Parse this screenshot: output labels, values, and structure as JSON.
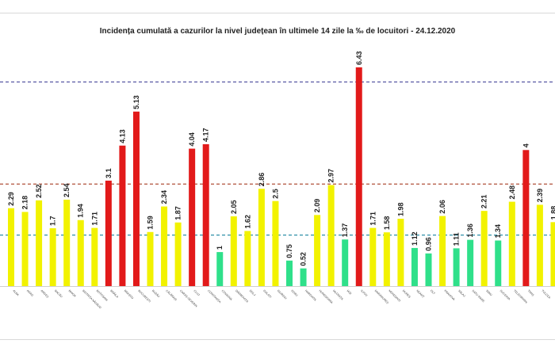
{
  "title": "Incidența cumulată a cazurilor la nivel județean în ultimele 14 zile la ‰ de locuitori - 24.12.2020",
  "colors": {
    "yellow": "#f2f200",
    "red": "#e21a1a",
    "green": "#2fe08a",
    "line_blue": "#4a4a9c",
    "line_red": "#b0503a",
    "line_teal": "#2f8fa8",
    "baseline": "#d0d0d0"
  },
  "chart_data": {
    "type": "bar",
    "title": "Incidența cumulată a cazurilor la nivel județean în ultimele 14 zile la ‰ de locuitori - 24.12.2020",
    "xlabel": "",
    "ylabel": "",
    "ylim": [
      0,
      7
    ],
    "grid": false,
    "reference_lines": [
      {
        "value": 6,
        "color": "line_blue",
        "style": "dashed"
      },
      {
        "value": 3,
        "color": "line_red",
        "style": "dashed"
      },
      {
        "value": 1.5,
        "color": "line_teal",
        "style": "dashed"
      }
    ],
    "categories": [
      "ALBA",
      "ARAD",
      "ARGEȘ",
      "BACĂU",
      "BIHOR",
      "BISTRIȚA NĂSĂUD",
      "BOTOȘANI",
      "BRĂILA",
      "BRAȘOV",
      "BUCUREȘTI",
      "BUZĂU",
      "CĂLĂRAȘI",
      "CARAȘ-SEVERIN",
      "CLUJ",
      "CONSTANȚA",
      "COVASNA",
      "DÂMBOVIȚA",
      "DOLJ",
      "GALAȚI",
      "GIURGIU",
      "GORJ",
      "HARGHITA",
      "HUNEDOARA",
      "IALOMIȚA",
      "IAȘI",
      "ILFOV",
      "MARAMUREȘ",
      "MEHEDINȚI",
      "MUREȘ",
      "NEAMȚ",
      "OLT",
      "PRAHOVA",
      "SĂLAJ",
      "SATU MARE",
      "SIBIU",
      "SUCEAVA",
      "TELEORMAN",
      "TIMIȘ",
      "TULCEA",
      "VÂLCEA",
      "VASLUI"
    ],
    "values": [
      2.29,
      2.18,
      2.52,
      1.7,
      2.54,
      1.94,
      1.71,
      3.1,
      4.13,
      5.13,
      1.59,
      2.34,
      1.87,
      4.04,
      4.17,
      1,
      2.05,
      1.62,
      2.86,
      2.5,
      0.75,
      0.52,
      2.09,
      2.97,
      1.37,
      6.43,
      1.71,
      1.58,
      1.98,
      1.12,
      0.96,
      2.06,
      1.11,
      1.36,
      2.21,
      1.34,
      2.48,
      4,
      2.39,
      1.88,
      1.8
    ],
    "value_labels": [
      "2.29",
      "2.18",
      "2.52",
      "1.7",
      "2.54",
      "1.94",
      "1.71",
      "3.1",
      "4.13",
      "5.13",
      "1.59",
      "2.34",
      "1.87",
      "4.04",
      "4.17",
      "1",
      "2.05",
      "1.62",
      "2.86",
      "2.5",
      "0.75",
      "0.52",
      "2.09",
      "2.97",
      "1.37",
      "6.43",
      "1.71",
      "1.58",
      "1.98",
      "1.12",
      "0.96",
      "2.06",
      "1.11",
      "1.36",
      "2.21",
      "1.34",
      "2.48",
      "4",
      "2.39",
      "1.88",
      ""
    ],
    "bar_colors": [
      "yellow",
      "yellow",
      "yellow",
      "yellow",
      "yellow",
      "yellow",
      "yellow",
      "red",
      "red",
      "red",
      "yellow",
      "yellow",
      "yellow",
      "red",
      "red",
      "green",
      "yellow",
      "yellow",
      "yellow",
      "yellow",
      "green",
      "green",
      "yellow",
      "yellow",
      "green",
      "red",
      "yellow",
      "yellow",
      "yellow",
      "green",
      "green",
      "yellow",
      "green",
      "green",
      "yellow",
      "green",
      "yellow",
      "red",
      "yellow",
      "yellow",
      "yellow"
    ]
  }
}
